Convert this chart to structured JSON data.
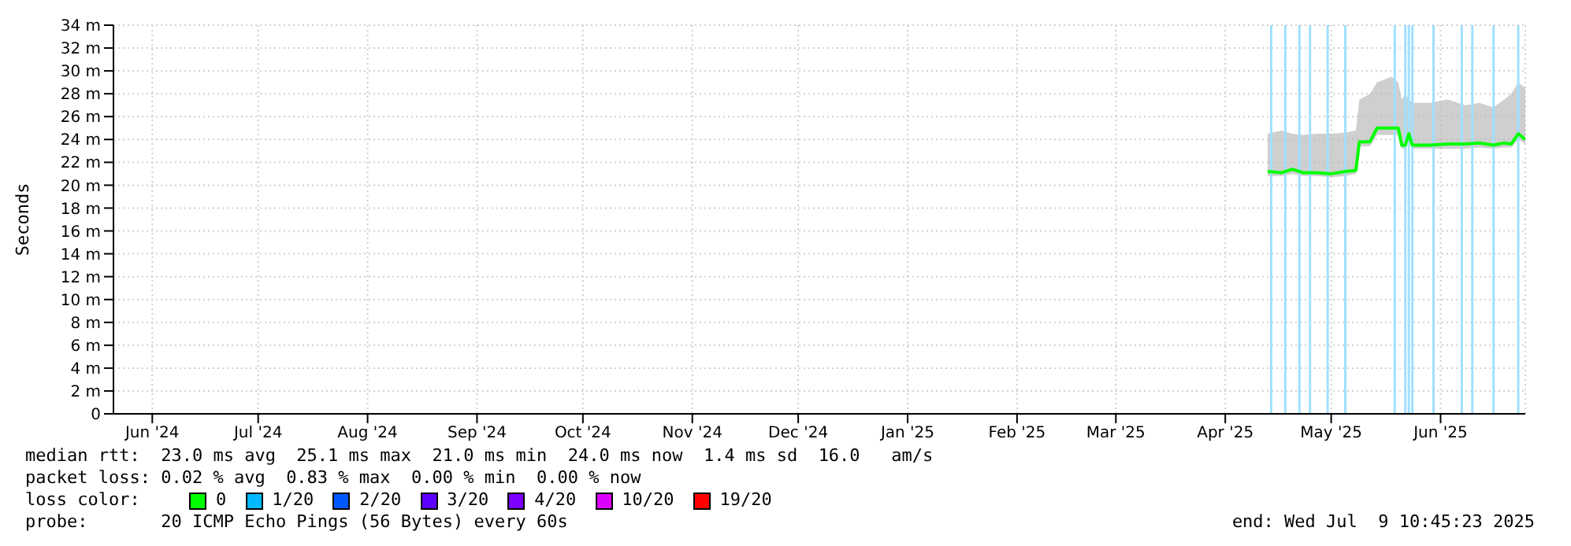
{
  "chart_data": {
    "type": "line",
    "ylabel": "Seconds",
    "legend_title": "loss color:",
    "legend": "bottom",
    "grid": true,
    "marker": "none",
    "xlim": [
      "2024-06-04",
      "2025-07-09"
    ],
    "xticks": [
      {
        "value": "2024-06-15",
        "label": "Jun '24"
      },
      {
        "value": "2024-07-15",
        "label": "Jul '24"
      },
      {
        "value": "2024-08-15",
        "label": "Aug '24"
      },
      {
        "value": "2024-09-15",
        "label": "Sep '24"
      },
      {
        "value": "2024-10-15",
        "label": "Oct '24"
      },
      {
        "value": "2024-11-15",
        "label": "Nov '24"
      },
      {
        "value": "2024-12-15",
        "label": "Dec '24"
      },
      {
        "value": "2025-01-15",
        "label": "Jan '25"
      },
      {
        "value": "2025-02-15",
        "label": "Feb '25"
      },
      {
        "value": "2025-03-15",
        "label": "Mar '25"
      },
      {
        "value": "2025-04-15",
        "label": "Apr '25"
      },
      {
        "value": "2025-05-15",
        "label": "May '25"
      },
      {
        "value": "2025-06-15",
        "label": "Jun '25"
      }
    ],
    "ylim": [
      0,
      34
    ],
    "yticks": [
      0,
      {
        "value": 2,
        "label": "2 m"
      },
      {
        "value": 4,
        "label": "4 m"
      },
      {
        "value": 6,
        "label": "6 m"
      },
      {
        "value": 8,
        "label": "8 m"
      },
      {
        "value": 10,
        "label": "10 m"
      },
      {
        "value": 12,
        "label": "12 m"
      },
      {
        "value": 14,
        "label": "14 m"
      },
      {
        "value": 16,
        "label": "16 m"
      },
      {
        "value": 18,
        "label": "18 m"
      },
      {
        "value": 20,
        "label": "20 m"
      },
      {
        "value": 22,
        "label": "22 m"
      },
      {
        "value": 24,
        "label": "24 m"
      },
      {
        "value": 26,
        "label": "26 m"
      },
      {
        "value": 28,
        "label": "28 m"
      },
      {
        "value": 30,
        "label": "30 m"
      },
      {
        "value": 32,
        "label": "32 m"
      },
      {
        "value": 34,
        "label": "34 m"
      }
    ],
    "series": [
      {
        "name": "0",
        "color": "#00ff00",
        "x": [
          "2025-04-27",
          "2025-05-01",
          "2025-05-04",
          "2025-05-07",
          "2025-05-11",
          "2025-05-15",
          "2025-05-19",
          "2025-05-22",
          "2025-05-23",
          "2025-05-26",
          "2025-05-28",
          "2025-06-01",
          "2025-06-03",
          "2025-06-04",
          "2025-06-05",
          "2025-06-06",
          "2025-06-07",
          "2025-06-12",
          "2025-06-17",
          "2025-06-22",
          "2025-06-26",
          "2025-06-30",
          "2025-07-03",
          "2025-07-05",
          "2025-07-07",
          "2025-07-09"
        ],
        "values": [
          21.2,
          21.1,
          21.4,
          21.1,
          21.1,
          21.0,
          21.2,
          21.3,
          23.8,
          23.8,
          25.0,
          25.0,
          25.0,
          23.5,
          23.5,
          24.5,
          23.5,
          23.5,
          23.6,
          23.6,
          23.7,
          23.5,
          23.7,
          23.6,
          24.5,
          24.0
        ],
        "lower": [
          20.8,
          20.8,
          21.0,
          20.8,
          20.8,
          20.7,
          20.8,
          21.0,
          23.4,
          23.4,
          24.4,
          24.4,
          24.4,
          23.2,
          23.2,
          24.0,
          23.2,
          23.2,
          23.2,
          23.2,
          23.3,
          23.2,
          23.3,
          23.3,
          24.0,
          23.6
        ],
        "upper": [
          24.5,
          24.8,
          24.5,
          24.4,
          24.5,
          24.5,
          24.6,
          24.8,
          27.5,
          28.0,
          29.0,
          29.5,
          29.0,
          27.5,
          28.0,
          27.5,
          27.2,
          27.2,
          27.5,
          27.0,
          27.2,
          26.8,
          27.5,
          28.0,
          29.0,
          28.5
        ]
      },
      {
        "name": "1/20",
        "color": "#00b8ff"
      },
      {
        "name": "2/20",
        "color": "#0059ff"
      },
      {
        "name": "3/20",
        "color": "#5e00ff"
      },
      {
        "name": "4/20",
        "color": "#7e00ff"
      },
      {
        "name": "10/20",
        "color": "#dd00ff"
      },
      {
        "name": "19/20",
        "color": "#ff0000"
      }
    ],
    "ref_lines": [
      {
        "axis": "x",
        "value": "2025-04-28",
        "color": "#a0e0ff"
      },
      {
        "axis": "x",
        "value": "2025-05-02",
        "color": "#a0e0ff"
      },
      {
        "axis": "x",
        "value": "2025-05-06",
        "color": "#a0e0ff"
      },
      {
        "axis": "x",
        "value": "2025-05-09",
        "color": "#a0e0ff"
      },
      {
        "axis": "x",
        "value": "2025-05-14",
        "color": "#a0e0ff"
      },
      {
        "axis": "x",
        "value": "2025-05-19",
        "color": "#a0e0ff"
      },
      {
        "axis": "x",
        "value": "2025-06-02",
        "color": "#a0e0ff"
      },
      {
        "axis": "x",
        "value": "2025-06-05",
        "color": "#a0e0ff"
      },
      {
        "axis": "x",
        "value": "2025-06-06",
        "color": "#a0e0ff"
      },
      {
        "axis": "x",
        "value": "2025-06-07",
        "color": "#a0e0ff"
      },
      {
        "axis": "x",
        "value": "2025-06-13",
        "color": "#a0e0ff"
      },
      {
        "axis": "x",
        "value": "2025-06-21",
        "color": "#a0e0ff"
      },
      {
        "axis": "x",
        "value": "2025-06-24",
        "color": "#a0e0ff"
      },
      {
        "axis": "x",
        "value": "2025-06-30",
        "color": "#a0e0ff"
      },
      {
        "axis": "x",
        "value": "2025-07-07",
        "color": "#a0e0ff"
      }
    ],
    "annotations": [
      "median rtt:  23.0 ms avg  25.1 ms max  21.0 ms min  24.0 ms now  1.4 ms sd  16.0   am/s",
      "packet loss: 0.02 % avg  0.83 % max  0.00 % min  0.00 % now",
      "probe:       20 ICMP Echo Pings (56 Bytes) every 60s",
      "end: Wed Jul  9 10:45:23 2025"
    ]
  }
}
